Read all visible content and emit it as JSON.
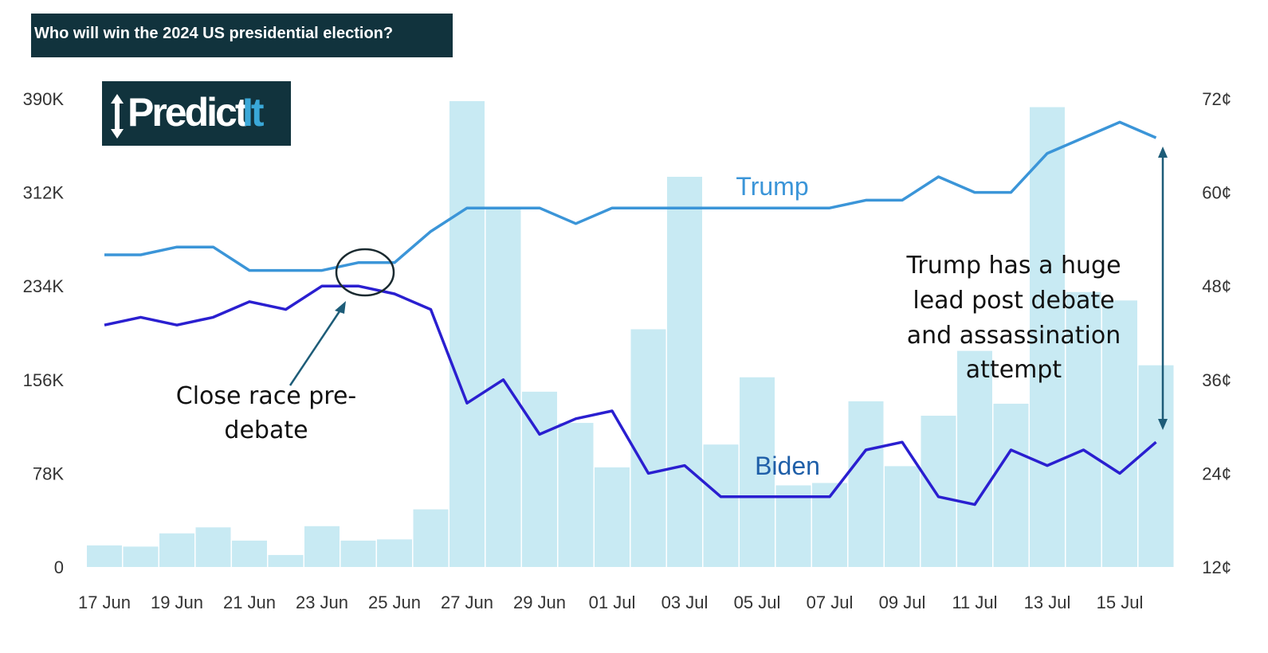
{
  "title": "Who will win the 2024 US presidential election?",
  "logo": {
    "text_main": "Predict",
    "text_accent": "It"
  },
  "colors": {
    "title_bg": "#11333d",
    "bars": "#c8eaf3",
    "trump": "#3b95d8",
    "biden": "#2a1fd0",
    "annotation_arrow": "#1d5c78",
    "trump_label": "#3b95d8",
    "biden_label": "#1f5fa8"
  },
  "chart_data": {
    "type": "bar+line",
    "x": [
      "17 Jun",
      "18 Jun",
      "19 Jun",
      "20 Jun",
      "21 Jun",
      "22 Jun",
      "23 Jun",
      "24 Jun",
      "25 Jun",
      "26 Jun",
      "27 Jun",
      "28 Jun",
      "29 Jun",
      "30 Jun",
      "01 Jul",
      "02 Jul",
      "03 Jul",
      "04 Jul",
      "05 Jul",
      "06 Jul",
      "07 Jul",
      "08 Jul",
      "09 Jul",
      "10 Jul",
      "11 Jul",
      "12 Jul",
      "13 Jul",
      "14 Jul",
      "15 Jul",
      "16 Jul"
    ],
    "x_tick_labels": [
      "17 Jun",
      "19 Jun",
      "21 Jun",
      "23 Jun",
      "25 Jun",
      "27 Jun",
      "29 Jun",
      "01 Jul",
      "03 Jul",
      "05 Jul",
      "07 Jul",
      "09 Jul",
      "11 Jul",
      "13 Jul",
      "15 Jul"
    ],
    "y_left": {
      "ticks": [
        "0",
        "78K",
        "156K",
        "234K",
        "312K",
        "390K"
      ],
      "range": [
        0,
        390000
      ]
    },
    "y_right": {
      "ticks": [
        "12¢",
        "24¢",
        "36¢",
        "48¢",
        "60¢",
        "72¢"
      ],
      "range": [
        12,
        72
      ]
    },
    "volume": [
      18000,
      17000,
      28000,
      33000,
      22000,
      10000,
      34000,
      22000,
      23000,
      48000,
      388000,
      298000,
      146000,
      120000,
      83000,
      198000,
      325000,
      102000,
      158000,
      68000,
      70000,
      138000,
      84000,
      126000,
      180000,
      136000,
      383000,
      229000,
      222000,
      168000
    ],
    "series": [
      {
        "name": "Trump",
        "values": [
          52,
          52,
          53,
          53,
          50,
          50,
          50,
          51,
          51,
          55,
          58,
          58,
          58,
          56,
          58,
          58,
          58,
          58,
          58,
          58,
          58,
          59,
          59,
          62,
          60,
          60,
          65,
          67,
          69,
          67
        ]
      },
      {
        "name": "Biden",
        "values": [
          43,
          44,
          43,
          44,
          46,
          45,
          48,
          48,
          47,
          45,
          33,
          36,
          29,
          31,
          32,
          24,
          25,
          21,
          21,
          21,
          21,
          27,
          28,
          21,
          20,
          27,
          25,
          27,
          24,
          28
        ]
      }
    ],
    "annotations": [
      {
        "text_line1": "Close race pre-",
        "text_line2": "debate"
      },
      {
        "text_line1": "Trump has a huge",
        "text_line2": "lead post debate",
        "text_line3": "and assassination",
        "text_line4": "attempt"
      }
    ]
  }
}
